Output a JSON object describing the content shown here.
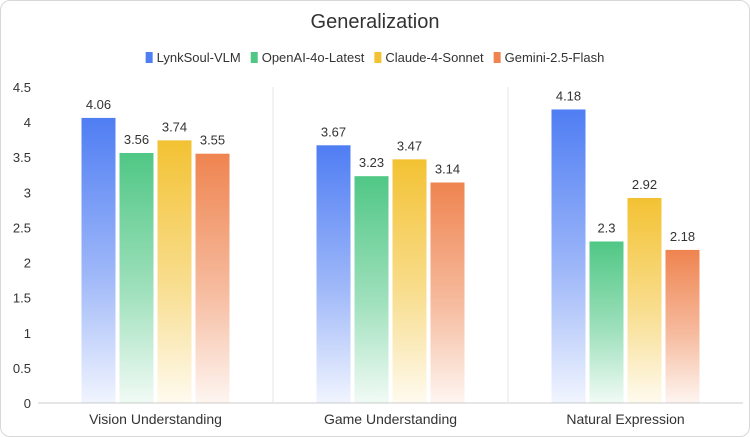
{
  "chart_data": {
    "type": "bar",
    "title": "Generalization",
    "categories": [
      "Vision Understanding",
      "Game Understanding",
      "Natural Expression"
    ],
    "series": [
      {
        "name": "LynkSoul-VLM",
        "values": [
          4.06,
          3.67,
          4.18
        ],
        "color": "#4f7df3"
      },
      {
        "name": "OpenAI-4o-Latest",
        "values": [
          3.56,
          3.23,
          2.3
        ],
        "color": "#50c785"
      },
      {
        "name": "Claude-4-Sonnet",
        "values": [
          3.74,
          3.47,
          2.92
        ],
        "color": "#f3c233"
      },
      {
        "name": "Gemini-2.5-Flash",
        "values": [
          3.55,
          3.14,
          2.18
        ],
        "color": "#ef8450"
      }
    ],
    "value_labels": [
      [
        "4.06",
        "3.67",
        "4.18"
      ],
      [
        "3.56",
        "3.23",
        "2.3"
      ],
      [
        "3.74",
        "3.47",
        "2.92"
      ],
      [
        "3.55",
        "3.14",
        "2.18"
      ]
    ],
    "ylim": [
      0,
      4.5
    ],
    "yticks": [
      "0",
      "0.5",
      "1",
      "1.5",
      "2",
      "2.5",
      "3",
      "3.5",
      "4",
      "4.5"
    ],
    "grid": "vertical separators between categories",
    "legend_position": "top-center",
    "xlabel": "",
    "ylabel": ""
  }
}
